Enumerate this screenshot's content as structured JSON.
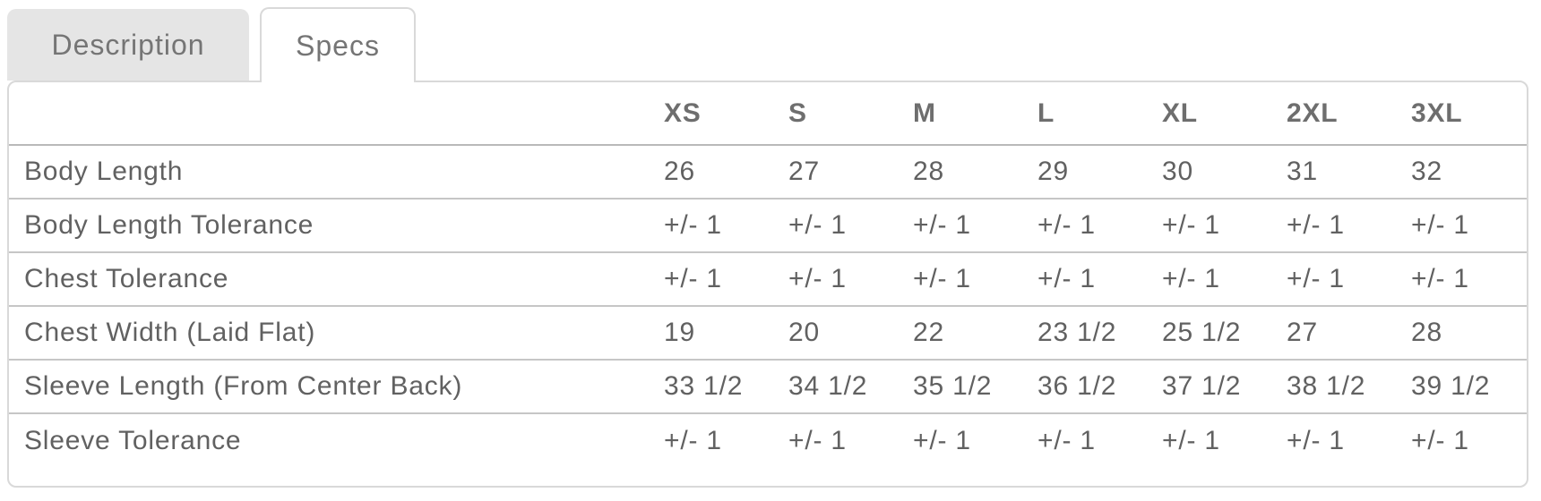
{
  "tabs": [
    {
      "label": "Description",
      "active": false
    },
    {
      "label": "Specs",
      "active": true
    }
  ],
  "specs_table": {
    "size_headers": [
      "XS",
      "S",
      "M",
      "L",
      "XL",
      "2XL",
      "3XL"
    ],
    "rows": [
      {
        "label": "Body Length",
        "values": [
          "26",
          "27",
          "28",
          "29",
          "30",
          "31",
          "32"
        ]
      },
      {
        "label": "Body Length Tolerance",
        "values": [
          "+/- 1",
          "+/- 1",
          "+/- 1",
          "+/- 1",
          "+/- 1",
          "+/- 1",
          "+/- 1"
        ]
      },
      {
        "label": "Chest Tolerance",
        "values": [
          "+/- 1",
          "+/- 1",
          "+/- 1",
          "+/- 1",
          "+/- 1",
          "+/- 1",
          "+/- 1"
        ]
      },
      {
        "label": "Chest Width (Laid Flat)",
        "values": [
          "19",
          "20",
          "22",
          "23 1/2",
          "25 1/2",
          "27",
          "28"
        ]
      },
      {
        "label": "Sleeve Length (From Center Back)",
        "values": [
          "33 1/2",
          "34 1/2",
          "35 1/2",
          "36 1/2",
          "37 1/2",
          "38 1/2",
          "39 1/2"
        ]
      },
      {
        "label": "Sleeve Tolerance",
        "values": [
          "+/- 1",
          "+/- 1",
          "+/- 1",
          "+/- 1",
          "+/- 1",
          "+/- 1",
          "+/- 1"
        ]
      }
    ]
  },
  "colors": {
    "tab_inactive_bg": "#e5e5e5",
    "panel_border": "#d9d9d9",
    "row_divider": "#c6c6c6",
    "header_divider": "#b9b9b9",
    "text": "#616161"
  }
}
